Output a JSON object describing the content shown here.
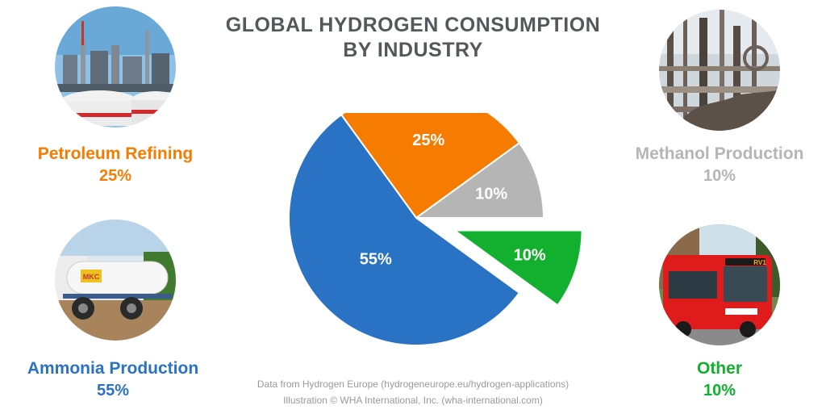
{
  "title": {
    "line1": "GLOBAL HYDROGEN CONSUMPTION",
    "line2": "BY INDUSTRY"
  },
  "categories": {
    "petroleum": {
      "name": "Petroleum Refining",
      "pct": "25%",
      "color": "#f57c00",
      "photo_icon": "refinery-photo"
    },
    "methanol": {
      "name": "Methanol Production",
      "pct": "10%",
      "color": "#b5b5b5",
      "photo_icon": "methanol-plant-photo"
    },
    "ammonia": {
      "name": "Ammonia Production",
      "pct": "55%",
      "color": "#2a72c4",
      "photo_icon": "ammonia-tank-trailer-photo"
    },
    "other": {
      "name": "Other",
      "pct": "10%",
      "color": "#12b02e",
      "photo_icon": "hydrogen-bus-photo"
    }
  },
  "photo_text": {
    "truck_brand": "MKC",
    "bus_route": "RV1"
  },
  "credits": {
    "line1": "Data from Hydrogen Europe (hydrogeneurope.eu/hydrogen-applications)",
    "line2": "Illustration © WHA International, Inc. (wha-international.com)"
  },
  "chart_data": {
    "type": "pie",
    "title": "GLOBAL HYDROGEN CONSUMPTION BY INDUSTRY",
    "slices": [
      {
        "label": "Petroleum Refining",
        "value": 25,
        "data_label": "25%",
        "color": "#f57c00"
      },
      {
        "label": "Methanol Production",
        "value": 10,
        "data_label": "10%",
        "color": "#b5b5b5"
      },
      {
        "label": "Other",
        "value": 10,
        "data_label": "10%",
        "color": "#12b02e",
        "exploded": true
      },
      {
        "label": "Ammonia Production",
        "value": 55,
        "data_label": "55%",
        "color": "#2a72c4"
      }
    ]
  }
}
